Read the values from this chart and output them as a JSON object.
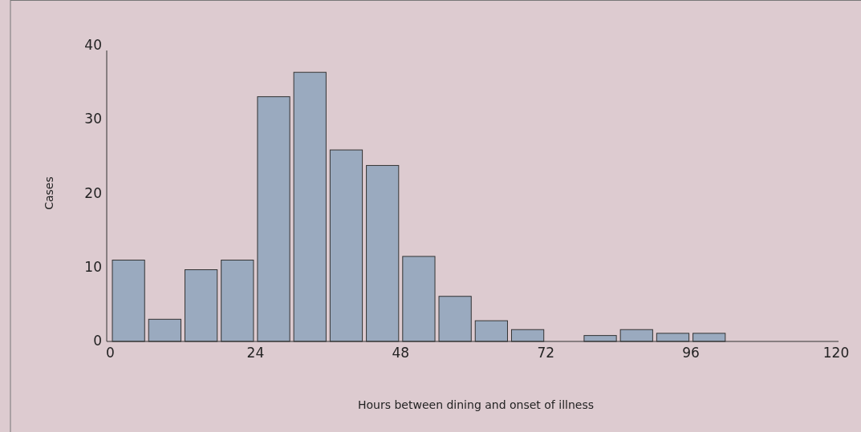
{
  "chart_data": {
    "type": "histogram",
    "xlabel": "Hours between dining and onset of illness",
    "ylabel": "Cases",
    "bins": [
      0,
      6,
      12,
      18,
      24,
      30,
      36,
      42,
      48,
      54,
      60,
      66,
      72,
      78,
      84,
      90,
      96,
      102
    ],
    "values": [
      11,
      3,
      9.7,
      11,
      33.1,
      36.4,
      25.9,
      23.8,
      11.5,
      6.1,
      2.8,
      1.6,
      0,
      0.8,
      1.6,
      1.1,
      1.1
    ],
    "color": "#9aaabf",
    "xlim": [
      -0.6,
      120.4
    ],
    "xticks": [
      0,
      24,
      48,
      72,
      96,
      120
    ],
    "ylim": [
      0,
      40
    ],
    "yticks": [
      0,
      10,
      20,
      30,
      40
    ],
    "grid": false
  }
}
